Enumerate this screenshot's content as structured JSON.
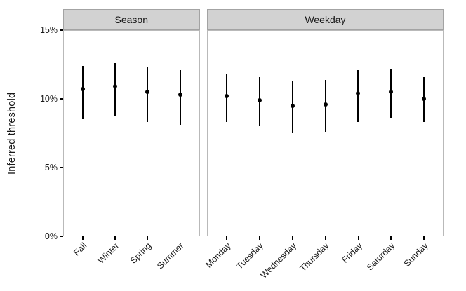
{
  "colors": {
    "strip_fill": "#d2d2d2",
    "strip_border": "#a3a3a3",
    "panel_border": "#b9b9b9",
    "point_color": "#000000",
    "text_color": "#1a1a1a"
  },
  "chart_data": {
    "type": "scatter",
    "subtype": "pointrange-facets",
    "title": "",
    "y_axis": {
      "label": "Inferred threshold",
      "tick_labels": [
        "0%",
        "5%",
        "10%",
        "15%"
      ],
      "tick_values": [
        0,
        5,
        10,
        15
      ],
      "range": [
        0,
        15
      ],
      "grid": false
    },
    "legend": "none",
    "facets": [
      {
        "label": "Season",
        "categories": [
          "Fall",
          "Winter",
          "Spring",
          "Summer"
        ],
        "estimates": [
          10.7,
          10.9,
          10.5,
          10.3
        ],
        "ci_low": [
          8.5,
          8.8,
          8.3,
          8.1
        ],
        "ci_high": [
          12.4,
          12.6,
          12.3,
          12.1
        ]
      },
      {
        "label": "Weekday",
        "categories": [
          "Monday",
          "Tuesday",
          "Wednesday",
          "Thursday",
          "Friday",
          "Saturday",
          "Sunday"
        ],
        "estimates": [
          10.2,
          9.9,
          9.5,
          9.6,
          10.4,
          10.5,
          10.0
        ],
        "ci_low": [
          8.3,
          8.0,
          7.5,
          7.6,
          8.3,
          8.6,
          8.3
        ],
        "ci_high": [
          11.8,
          11.6,
          11.3,
          11.4,
          12.1,
          12.2,
          11.6
        ]
      }
    ]
  }
}
